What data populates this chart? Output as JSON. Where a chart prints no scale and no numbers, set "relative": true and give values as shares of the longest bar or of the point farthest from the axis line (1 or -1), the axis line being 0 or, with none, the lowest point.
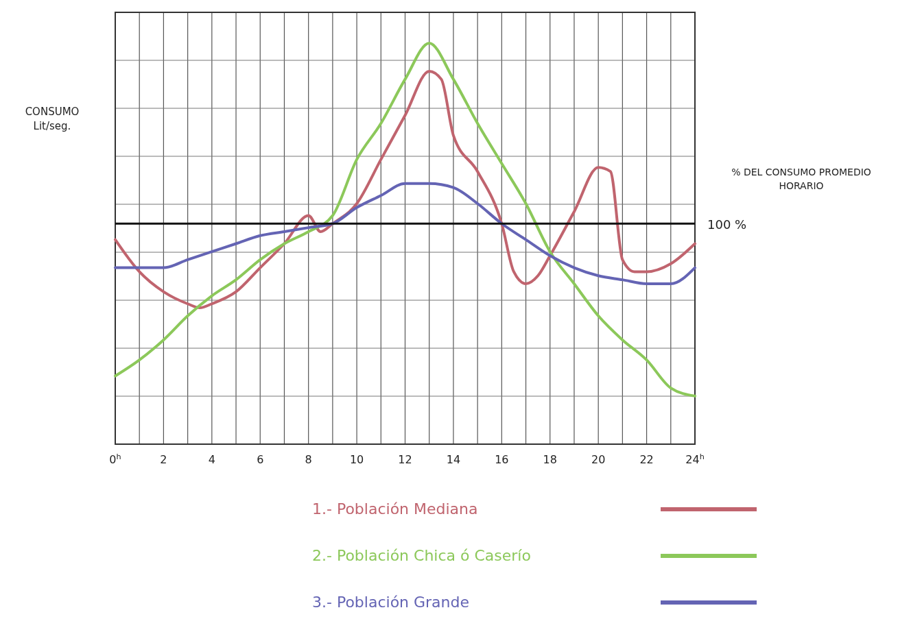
{
  "chart_data": {
    "type": "line",
    "relative": true,
    "ylabel": "CONSUMO\nLit/seg.",
    "y2label": "% DEL CONSUMO PROMEDIO\nHORARIO",
    "xlim": [
      0,
      24
    ],
    "xticks": [
      {
        "value": 0,
        "label": "0$^{h}$"
      },
      {
        "value": 1,
        "label": null
      },
      2,
      {
        "value": 3,
        "label": null
      },
      4,
      {
        "value": 5,
        "label": null
      },
      6,
      {
        "value": 7,
        "label": null
      },
      8,
      {
        "value": 9,
        "label": null
      },
      10,
      {
        "value": 11,
        "label": null
      },
      12,
      {
        "value": 13,
        "label": null
      },
      14,
      {
        "value": 15,
        "label": null
      },
      16,
      {
        "value": 17,
        "label": null
      },
      18,
      {
        "value": 19,
        "label": null
      },
      20,
      {
        "value": 21,
        "label": null
      },
      22,
      {
        "value": 23,
        "label": null
      },
      {
        "value": 24,
        "label": "24$^{h}$"
      }
    ],
    "grid": true,
    "legend": "bottom",
    "marker": "none",
    "line_style": "solid",
    "ref_lines": [
      {
        "axis": "y",
        "value": 0.55,
        "color": "#111111"
      }
    ],
    "annotations": [
      {
        "text": "100 %",
        "x": 24,
        "y": 0.55
      }
    ],
    "series": [
      {
        "name": "1.- Población Mediana",
        "color": "#c0646e",
        "x": [
          0,
          1,
          2,
          3,
          3.5,
          4,
          5,
          6,
          7,
          8,
          8.5,
          9,
          10,
          11,
          12,
          13,
          13.5,
          14,
          15,
          16,
          16.5,
          17,
          17.5,
          18,
          19,
          20,
          20.5,
          21,
          21.5,
          22,
          23,
          24
        ],
        "values": [
          0.51,
          0.43,
          0.38,
          0.35,
          0.34,
          0.35,
          0.38,
          0.44,
          0.5,
          0.57,
          0.53,
          0.55,
          0.6,
          0.71,
          0.82,
          0.93,
          0.91,
          0.77,
          0.68,
          0.55,
          0.43,
          0.4,
          0.42,
          0.47,
          0.58,
          0.69,
          0.68,
          0.46,
          0.43,
          0.43,
          0.45,
          0.5
        ]
      },
      {
        "name": "2.- Población Chica ó Caserío",
        "color": "#8cc85a",
        "x": [
          0,
          1,
          2,
          3,
          4,
          5,
          6,
          7,
          8,
          9,
          10,
          11,
          12,
          13,
          14,
          15,
          16,
          17,
          18,
          19,
          20,
          21,
          22,
          23,
          24
        ],
        "values": [
          0.17,
          0.21,
          0.26,
          0.32,
          0.37,
          0.41,
          0.46,
          0.5,
          0.53,
          0.57,
          0.71,
          0.8,
          0.91,
          1,
          0.91,
          0.8,
          0.7,
          0.6,
          0.48,
          0.4,
          0.32,
          0.26,
          0.21,
          0.14,
          0.12
        ]
      },
      {
        "name": "3.- Población Grande",
        "color": "#6464b4",
        "x": [
          0,
          1,
          2,
          3,
          4,
          5,
          6,
          7,
          8,
          9,
          10,
          11,
          12,
          13,
          14,
          15,
          16,
          17,
          18,
          19,
          20,
          21,
          22,
          23,
          24
        ],
        "values": [
          0.44,
          0.44,
          0.44,
          0.46,
          0.48,
          0.5,
          0.52,
          0.53,
          0.54,
          0.55,
          0.59,
          0.62,
          0.65,
          0.65,
          0.64,
          0.6,
          0.55,
          0.51,
          0.47,
          0.44,
          0.42,
          0.41,
          0.4,
          0.4,
          0.44
        ]
      }
    ]
  }
}
